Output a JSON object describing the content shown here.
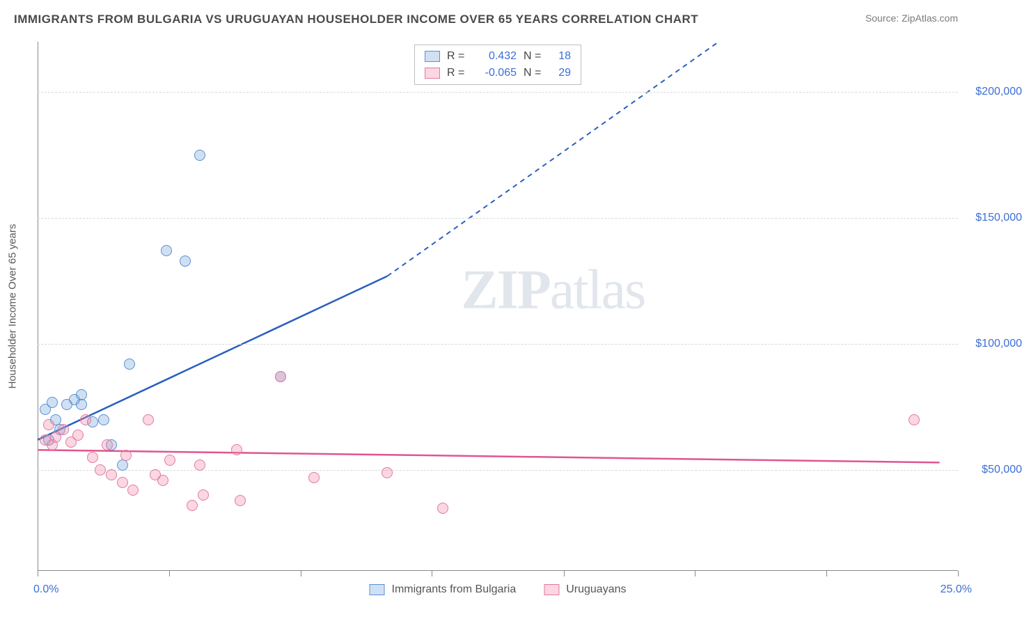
{
  "title": "IMMIGRANTS FROM BULGARIA VS URUGUAYAN HOUSEHOLDER INCOME OVER 65 YEARS CORRELATION CHART",
  "source": "Source: ZipAtlas.com",
  "watermark": "ZIPatlas",
  "chart": {
    "type": "scatter",
    "background_color": "#ffffff",
    "grid_color": "#d8d8d8",
    "axis_color": "#888888",
    "label_fontsize": 15,
    "tick_fontsize": 16,
    "tick_color": "#3b6fd6",
    "ylabel": "Householder Income Over 65 years",
    "xlim": [
      0,
      25
    ],
    "ylim": [
      10000,
      220000
    ],
    "x_ticks_minor": [
      0,
      3.57,
      7.14,
      10.71,
      14.29,
      17.86,
      21.43,
      25
    ],
    "x_min_label": "0.0%",
    "x_max_label": "25.0%",
    "y_ticks": [
      50000,
      100000,
      150000,
      200000
    ],
    "y_tick_labels": [
      "$50,000",
      "$100,000",
      "$150,000",
      "$200,000"
    ],
    "series": [
      {
        "name": "Immigrants from Bulgaria",
        "fill": "rgba(120,165,220,0.35)",
        "stroke": "#5a8fd0",
        "line_color": "#2a5fc0",
        "r": 0.432,
        "n": 18,
        "trend": {
          "x1": 0,
          "y1": 62000,
          "x2": 9.5,
          "y2": 127000,
          "x2_ext": 18.5,
          "y2_ext": 220000
        },
        "points": [
          {
            "x": 0.2,
            "y": 74000
          },
          {
            "x": 0.3,
            "y": 62000
          },
          {
            "x": 0.4,
            "y": 77000
          },
          {
            "x": 0.6,
            "y": 66000
          },
          {
            "x": 0.8,
            "y": 76000
          },
          {
            "x": 1.0,
            "y": 78000
          },
          {
            "x": 1.2,
            "y": 80000
          },
          {
            "x": 1.2,
            "y": 76000
          },
          {
            "x": 1.5,
            "y": 69000
          },
          {
            "x": 2.0,
            "y": 60000
          },
          {
            "x": 2.3,
            "y": 52000
          },
          {
            "x": 2.5,
            "y": 92000
          },
          {
            "x": 3.5,
            "y": 137000
          },
          {
            "x": 4.0,
            "y": 133000
          },
          {
            "x": 4.4,
            "y": 175000
          },
          {
            "x": 6.6,
            "y": 87000
          },
          {
            "x": 1.8,
            "y": 70000
          },
          {
            "x": 0.5,
            "y": 70000
          }
        ]
      },
      {
        "name": "Uruguayans",
        "fill": "rgba(240,140,170,0.35)",
        "stroke": "#e27aa0",
        "line_color": "#e05590",
        "r": -0.065,
        "n": 29,
        "trend": {
          "x1": 0,
          "y1": 58000,
          "x2": 24.5,
          "y2": 53000
        },
        "points": [
          {
            "x": 0.2,
            "y": 62000
          },
          {
            "x": 0.3,
            "y": 68000
          },
          {
            "x": 0.4,
            "y": 60000
          },
          {
            "x": 0.5,
            "y": 63000
          },
          {
            "x": 0.7,
            "y": 66000
          },
          {
            "x": 0.9,
            "y": 61000
          },
          {
            "x": 1.1,
            "y": 64000
          },
          {
            "x": 1.3,
            "y": 70000
          },
          {
            "x": 1.5,
            "y": 55000
          },
          {
            "x": 1.7,
            "y": 50000
          },
          {
            "x": 2.0,
            "y": 48000
          },
          {
            "x": 2.3,
            "y": 45000
          },
          {
            "x": 2.4,
            "y": 56000
          },
          {
            "x": 2.6,
            "y": 42000
          },
          {
            "x": 3.0,
            "y": 70000
          },
          {
            "x": 3.2,
            "y": 48000
          },
          {
            "x": 3.4,
            "y": 46000
          },
          {
            "x": 3.6,
            "y": 54000
          },
          {
            "x": 4.2,
            "y": 36000
          },
          {
            "x": 4.4,
            "y": 52000
          },
          {
            "x": 4.5,
            "y": 40000
          },
          {
            "x": 5.4,
            "y": 58000
          },
          {
            "x": 5.5,
            "y": 38000
          },
          {
            "x": 6.6,
            "y": 87000
          },
          {
            "x": 7.5,
            "y": 47000
          },
          {
            "x": 9.5,
            "y": 49000
          },
          {
            "x": 11.0,
            "y": 35000
          },
          {
            "x": 23.8,
            "y": 70000
          },
          {
            "x": 1.9,
            "y": 60000
          }
        ]
      }
    ]
  }
}
